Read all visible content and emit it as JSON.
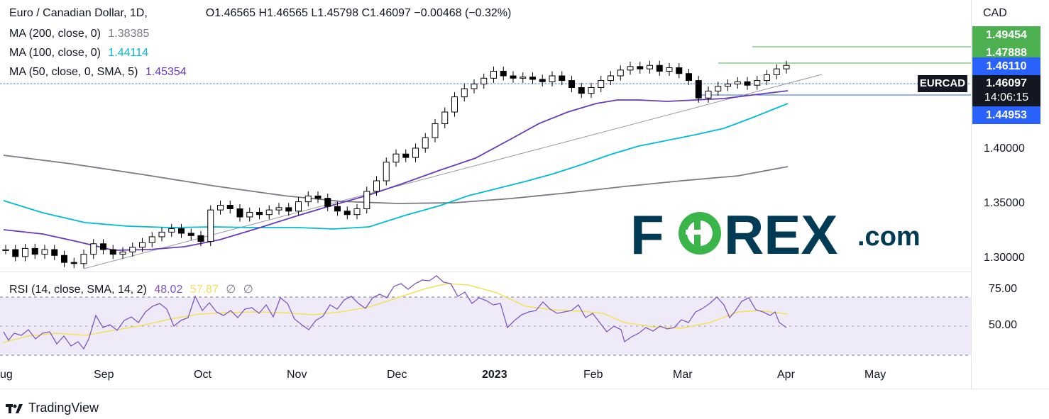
{
  "header": {
    "symbol": "Euro / Canadian Dollar, 1D,",
    "ohlc": "O1.46565  H1.46565  L1.45798  C1.46097  −0.00468 (−0.32%)",
    "currency": "CAD"
  },
  "legend": {
    "ma200_label": "MA (200, close, 0)",
    "ma200_value": "1.38385",
    "ma100_label": "MA (100, close, 0)",
    "ma100_value": "1.44114",
    "ma50_label": "MA (50, close, 0, SMA, 5)",
    "ma50_value": "1.45354",
    "rsi_label": "RSI (14, close, SMA, 14, 2)",
    "rsi_value": "48.02",
    "rsi_ma_value": "57.87",
    "rsi_extra1": "∅",
    "rsi_extra2": "∅"
  },
  "price_axis": {
    "ticks": [
      "1.40000",
      "1.35000",
      "1.30000"
    ],
    "tags": [
      {
        "label": "1.49454",
        "color": "#4caf50"
      },
      {
        "label": "1.47888",
        "color": "#4caf50"
      },
      {
        "label": "1.46110",
        "color": "#2962ff"
      },
      {
        "label": "1.44953",
        "color": "#2962ff"
      }
    ],
    "current_symbol": "EURCAD",
    "current_price": "1.46097",
    "countdown": "14:06:15"
  },
  "rsi_axis": {
    "ticks": [
      "75.00",
      "50.00"
    ]
  },
  "time_axis": [
    "ug",
    "Sep",
    "Oct",
    "Nov",
    "Dec",
    "2023",
    "Jan",
    "Feb",
    "Mar",
    "Apr",
    "May"
  ],
  "footer": {
    "brand": "TradingView"
  },
  "watermark": {
    "text": "FOREX.com"
  },
  "colors": {
    "ma200": "#787b86",
    "ma100": "#00bcd4",
    "ma50": "#673ab7",
    "rsi": "#7e57c2",
    "rsi_ma": "#f5e05a",
    "bull": "#000000",
    "bear": "#000000",
    "green_level": "#4caf50",
    "blue_level": "#2962ff",
    "brand_navy": "#003a55",
    "brand_green": "#3ab54a"
  },
  "chart_data": {
    "type": "candlestick",
    "symbol": "EURCAD",
    "timeframe": "1D",
    "ylim": [
      1.285,
      1.51
    ],
    "ohlc_points": [
      {
        "d": "2022-08-18",
        "c": 1.302
      },
      {
        "d": "2022-08-22",
        "c": 1.296
      },
      {
        "d": "2022-08-24",
        "c": 1.303
      },
      {
        "d": "2022-08-26",
        "c": 1.298
      },
      {
        "d": "2022-08-30",
        "c": 1.302
      },
      {
        "d": "2022-09-01",
        "c": 1.297
      },
      {
        "d": "2022-09-05",
        "c": 1.291
      },
      {
        "d": "2022-09-07",
        "c": 1.29
      },
      {
        "d": "2022-09-09",
        "c": 1.298
      },
      {
        "d": "2022-09-13",
        "c": 1.307
      },
      {
        "d": "2022-09-15",
        "c": 1.302
      },
      {
        "d": "2022-09-19",
        "c": 1.298
      },
      {
        "d": "2022-09-21",
        "c": 1.3
      },
      {
        "d": "2022-09-23",
        "c": 1.304
      },
      {
        "d": "2022-09-27",
        "c": 1.308
      },
      {
        "d": "2022-09-29",
        "c": 1.313
      },
      {
        "d": "2022-10-03",
        "c": 1.317
      },
      {
        "d": "2022-10-05",
        "c": 1.32
      },
      {
        "d": "2022-10-07",
        "c": 1.316
      },
      {
        "d": "2022-10-11",
        "c": 1.314
      },
      {
        "d": "2022-10-13",
        "c": 1.309
      },
      {
        "d": "2022-10-17",
        "c": 1.336
      },
      {
        "d": "2022-10-19",
        "c": 1.34
      },
      {
        "d": "2022-10-21",
        "c": 1.337
      },
      {
        "d": "2022-10-25",
        "c": 1.33
      },
      {
        "d": "2022-10-27",
        "c": 1.334
      },
      {
        "d": "2022-10-31",
        "c": 1.332
      },
      {
        "d": "2022-11-02",
        "c": 1.336
      },
      {
        "d": "2022-11-04",
        "c": 1.338
      },
      {
        "d": "2022-11-08",
        "c": 1.335
      },
      {
        "d": "2022-11-10",
        "c": 1.343
      },
      {
        "d": "2022-11-14",
        "c": 1.348
      },
      {
        "d": "2022-11-16",
        "c": 1.346
      },
      {
        "d": "2022-11-18",
        "c": 1.339
      },
      {
        "d": "2022-11-22",
        "c": 1.335
      },
      {
        "d": "2022-11-24",
        "c": 1.332
      },
      {
        "d": "2022-11-28",
        "c": 1.337
      },
      {
        "d": "2022-11-30",
        "c": 1.352
      },
      {
        "d": "2022-12-02",
        "c": 1.361
      },
      {
        "d": "2022-12-06",
        "c": 1.377
      },
      {
        "d": "2022-12-08",
        "c": 1.384
      },
      {
        "d": "2022-12-12",
        "c": 1.381
      },
      {
        "d": "2022-12-14",
        "c": 1.389
      },
      {
        "d": "2022-12-16",
        "c": 1.398
      },
      {
        "d": "2022-12-20",
        "c": 1.41
      },
      {
        "d": "2022-12-22",
        "c": 1.42
      },
      {
        "d": "2022-12-27",
        "c": 1.433
      },
      {
        "d": "2022-12-29",
        "c": 1.44
      },
      {
        "d": "2023-01-02",
        "c": 1.444
      },
      {
        "d": "2023-01-04",
        "c": 1.449
      },
      {
        "d": "2023-01-06",
        "c": 1.455
      },
      {
        "d": "2023-01-10",
        "c": 1.451
      },
      {
        "d": "2023-01-12",
        "c": 1.449
      },
      {
        "d": "2023-01-16",
        "c": 1.45
      },
      {
        "d": "2023-01-18",
        "c": 1.448
      },
      {
        "d": "2023-01-20",
        "c": 1.446
      },
      {
        "d": "2023-01-24",
        "c": 1.451
      },
      {
        "d": "2023-01-26",
        "c": 1.447
      },
      {
        "d": "2023-01-30",
        "c": 1.441
      },
      {
        "d": "2023-02-01",
        "c": 1.436
      },
      {
        "d": "2023-02-03",
        "c": 1.441
      },
      {
        "d": "2023-02-07",
        "c": 1.447
      },
      {
        "d": "2023-02-09",
        "c": 1.451
      },
      {
        "d": "2023-02-13",
        "c": 1.456
      },
      {
        "d": "2023-02-15",
        "c": 1.459
      },
      {
        "d": "2023-02-17",
        "c": 1.457
      },
      {
        "d": "2023-02-21",
        "c": 1.46
      },
      {
        "d": "2023-02-23",
        "c": 1.455
      },
      {
        "d": "2023-02-27",
        "c": 1.458
      },
      {
        "d": "2023-03-01",
        "c": 1.453
      },
      {
        "d": "2023-03-03",
        "c": 1.447
      },
      {
        "d": "2023-03-07",
        "c": 1.432
      },
      {
        "d": "2023-03-09",
        "c": 1.438
      },
      {
        "d": "2023-03-13",
        "c": 1.442
      },
      {
        "d": "2023-03-15",
        "c": 1.444
      },
      {
        "d": "2023-03-17",
        "c": 1.446
      },
      {
        "d": "2023-03-21",
        "c": 1.443
      },
      {
        "d": "2023-03-23",
        "c": 1.447
      },
      {
        "d": "2023-03-27",
        "c": 1.452
      },
      {
        "d": "2023-03-29",
        "c": 1.457
      },
      {
        "d": "2023-03-31",
        "c": 1.46
      }
    ],
    "ma200": {
      "name": "MA (200, close, 0)",
      "value": 1.38385
    },
    "ma100": {
      "name": "MA (100, close, 0)",
      "value": 1.44114
    },
    "ma50": {
      "name": "MA (50, close, 0, SMA, 5)",
      "value": 1.45354
    },
    "levels": [
      1.49454,
      1.47888,
      1.4611,
      1.44953
    ],
    "last_close": 1.46097,
    "rsi": {
      "value": 48.02,
      "ma": 57.87,
      "ylim": [
        30,
        85
      ],
      "bands": [
        70,
        30
      ]
    }
  }
}
